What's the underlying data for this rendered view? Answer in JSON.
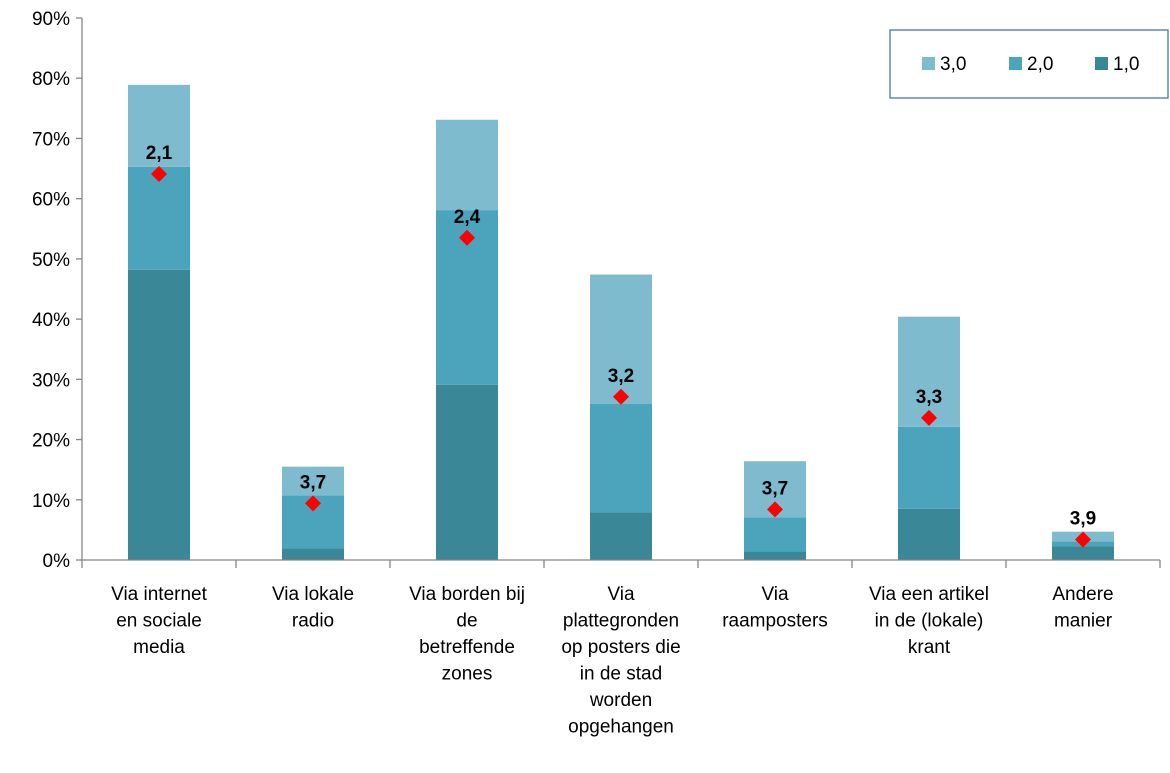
{
  "chart_data": {
    "type": "bar",
    "stacked": true,
    "categories": [
      [
        "Via internet",
        "en sociale",
        "media"
      ],
      [
        "Via lokale",
        "radio"
      ],
      [
        "Via borden bij",
        "de",
        "betreffende",
        "zones"
      ],
      [
        "Via",
        "plattegronden",
        "op posters die",
        "in de stad",
        "worden",
        "opgehangen"
      ],
      [
        "Via",
        "raamposters"
      ],
      [
        "Via een artikel",
        "in de (lokale)",
        "krant"
      ],
      [
        "Andere",
        "manier"
      ]
    ],
    "series": [
      {
        "name": "1,0",
        "color": "#3A8798",
        "values": [
          48.2,
          1.9,
          29.1,
          7.9,
          1.4,
          8.5,
          2.3
        ]
      },
      {
        "name": "2,0",
        "color": "#4BA3BC",
        "values": [
          17.1,
          8.8,
          29.0,
          18.0,
          5.7,
          13.6,
          0.8
        ]
      },
      {
        "name": "3,0",
        "color": "#7EBBCF",
        "values": [
          13.6,
          4.8,
          15.0,
          21.5,
          9.3,
          18.3,
          1.6
        ]
      }
    ],
    "markers": {
      "color": "#FF0000",
      "shape": "diamond",
      "values": [
        64.1,
        9.4,
        53.5,
        27.1,
        8.4,
        23.6,
        3.4
      ],
      "labels": [
        "2,1",
        "3,7",
        "2,4",
        "3,2",
        "3,7",
        "3,3",
        "3,9"
      ]
    },
    "y_ticks": [
      "0%",
      "10%",
      "20%",
      "30%",
      "40%",
      "50%",
      "60%",
      "70%",
      "80%",
      "90%"
    ],
    "ylim": [
      0,
      90
    ],
    "grid": false,
    "legend": {
      "position": "top-right",
      "items": [
        {
          "label": "3,0",
          "color": "#7EBBCF"
        },
        {
          "label": "2,0",
          "color": "#4BA3BC"
        },
        {
          "label": "1,0",
          "color": "#3A8798"
        }
      ]
    }
  }
}
